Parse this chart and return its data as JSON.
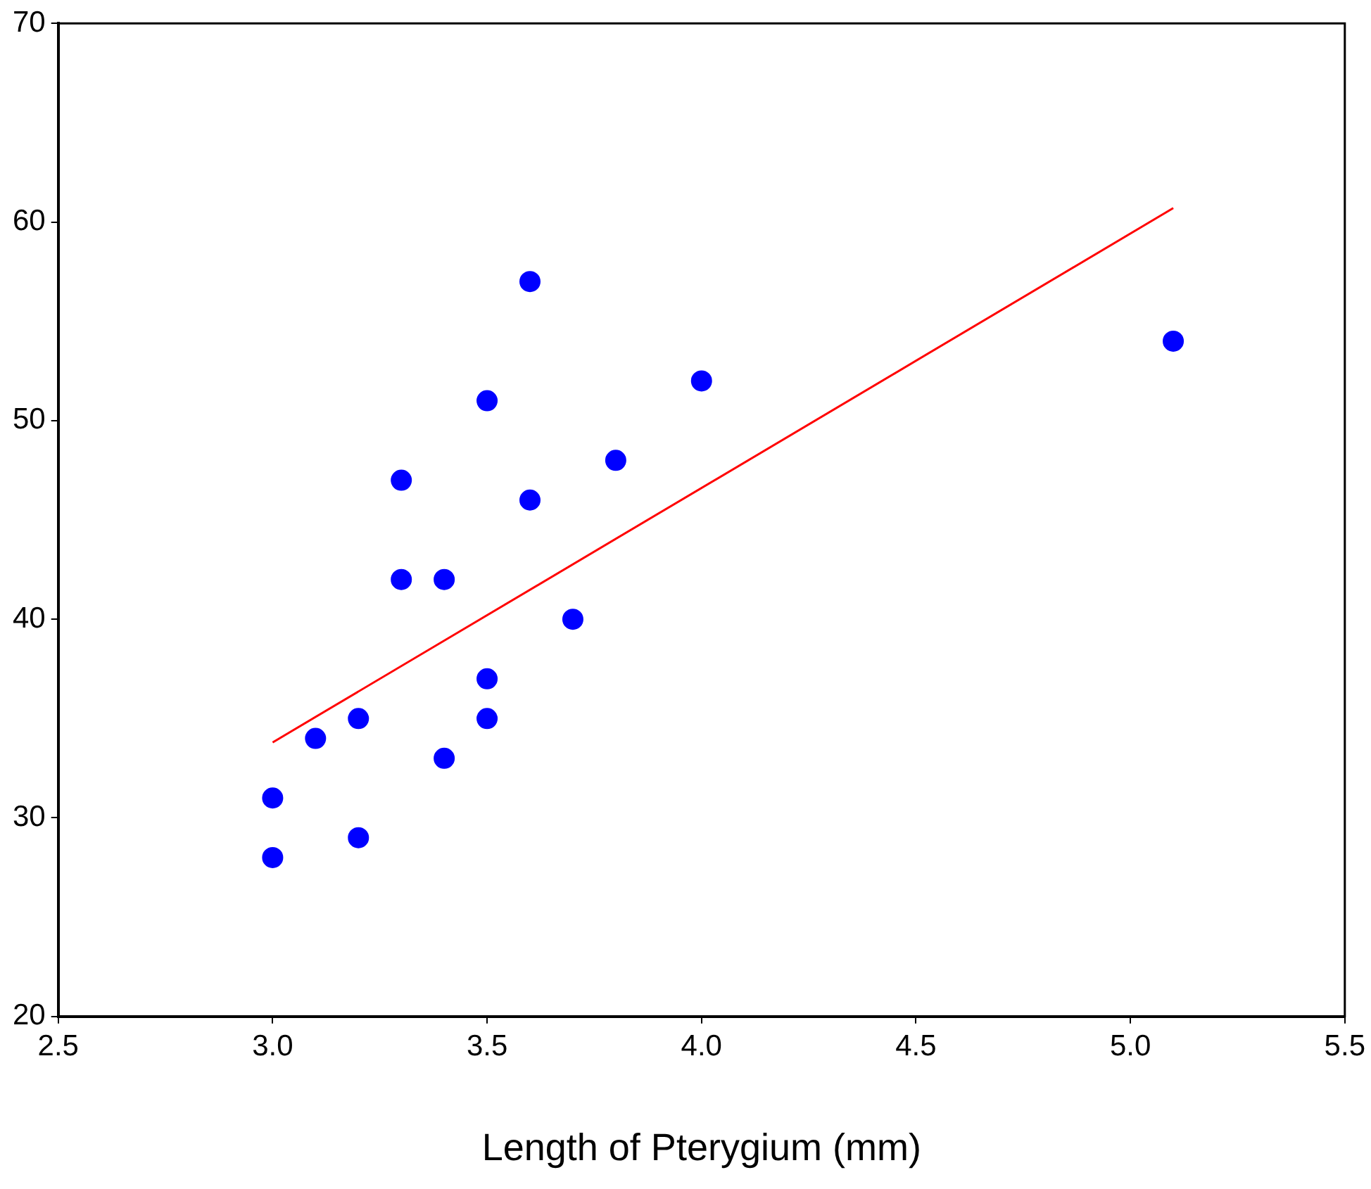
{
  "chart_data": {
    "type": "scatter",
    "xlabel": "Length of Pterygium (mm)",
    "xlim": [
      2.5,
      5.5
    ],
    "xticks": [
      {
        "value": 2.5,
        "label": "2.5"
      },
      {
        "value": 3,
        "label": "3.0"
      },
      {
        "value": 3.5,
        "label": "3.5"
      },
      {
        "value": 4,
        "label": "4.0"
      },
      {
        "value": 4.5,
        "label": "4.5"
      },
      {
        "value": 5,
        "label": "5.0"
      },
      {
        "value": 5.5,
        "label": "5.5"
      }
    ],
    "ylim": [
      20,
      70
    ],
    "yticks": [
      20,
      30,
      40,
      50,
      60,
      70
    ],
    "grid": false,
    "legend": false,
    "marker": "circle",
    "series": [
      {
        "type": "scatter",
        "color": "#0000ff",
        "x": [
          3.0,
          3.0,
          3.1,
          3.2,
          3.2,
          3.3,
          3.3,
          3.4,
          3.4,
          3.5,
          3.5,
          3.5,
          3.6,
          3.6,
          3.7,
          3.8,
          4.0,
          5.1
        ],
        "values": [
          31,
          28,
          34,
          35,
          29,
          47,
          42,
          42,
          33,
          51,
          37,
          35,
          57,
          46,
          40,
          48,
          52,
          54
        ]
      },
      {
        "type": "line",
        "color": "#ff0000",
        "marker": "none",
        "line_style": "solid",
        "x": [
          3.0,
          5.1
        ],
        "values": [
          33.8,
          60.7
        ]
      }
    ]
  }
}
